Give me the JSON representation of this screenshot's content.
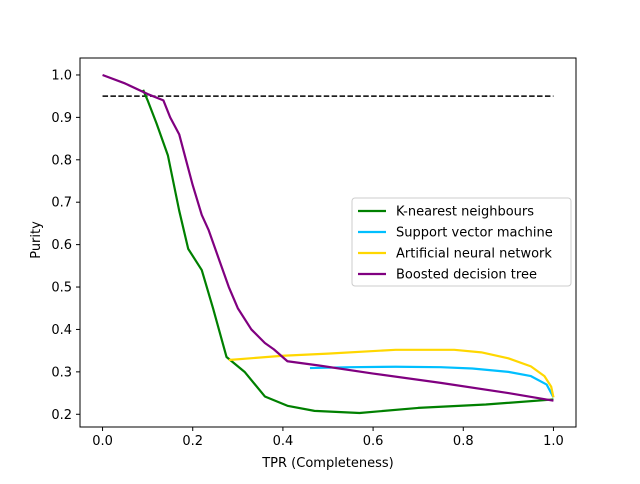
{
  "chart_data": {
    "type": "line",
    "title": "",
    "xlabel": "TPR (Completeness)",
    "ylabel": "Purity",
    "xlim": [
      -0.05,
      1.05
    ],
    "ylim": [
      0.17,
      1.04
    ],
    "xticks": [
      0.0,
      0.2,
      0.4,
      0.6,
      0.8,
      1.0
    ],
    "xtick_labels": [
      "0.0",
      "0.2",
      "0.4",
      "0.6",
      "0.8",
      "1.0"
    ],
    "yticks": [
      0.2,
      0.3,
      0.4,
      0.5,
      0.6,
      0.7,
      0.8,
      0.9,
      1.0
    ],
    "ytick_labels": [
      "0.2",
      "0.3",
      "0.4",
      "0.5",
      "0.6",
      "0.7",
      "0.8",
      "0.9",
      "1.0"
    ],
    "grid": false,
    "legend_position": "center-right",
    "reference_line": {
      "y": 0.95,
      "x_range": [
        0.0,
        1.0
      ],
      "style": "dashed",
      "color": "#000000"
    },
    "series": [
      {
        "name": "K-nearest neighbours",
        "color": "#008000",
        "x": [
          0.09,
          0.1,
          0.12,
          0.145,
          0.17,
          0.19,
          0.22,
          0.245,
          0.275,
          0.315,
          0.36,
          0.41,
          0.47,
          0.57,
          0.7,
          0.85,
          1.0
        ],
        "y": [
          0.965,
          0.94,
          0.885,
          0.81,
          0.68,
          0.59,
          0.54,
          0.45,
          0.335,
          0.3,
          0.242,
          0.22,
          0.208,
          0.203,
          0.215,
          0.223,
          0.235
        ]
      },
      {
        "name": "Support vector machine",
        "color": "#00bfff",
        "x": [
          0.46,
          0.55,
          0.65,
          0.75,
          0.82,
          0.9,
          0.95,
          0.985,
          1.0
        ],
        "y": [
          0.309,
          0.311,
          0.312,
          0.311,
          0.308,
          0.3,
          0.29,
          0.27,
          0.24
        ]
      },
      {
        "name": "Artificial neural network",
        "color": "#ffd700",
        "x": [
          0.28,
          0.4,
          0.5,
          0.65,
          0.78,
          0.84,
          0.9,
          0.95,
          0.98,
          0.995,
          1.0
        ],
        "y": [
          0.328,
          0.338,
          0.343,
          0.352,
          0.352,
          0.346,
          0.332,
          0.313,
          0.29,
          0.265,
          0.24
        ]
      },
      {
        "name": "Boosted decision tree",
        "color": "#800080",
        "x": [
          0.0,
          0.05,
          0.1,
          0.135,
          0.15,
          0.17,
          0.185,
          0.2,
          0.22,
          0.235,
          0.26,
          0.28,
          0.3,
          0.33,
          0.36,
          0.38,
          0.41,
          0.48,
          0.6,
          0.75,
          0.9,
          1.0
        ],
        "y": [
          1.0,
          0.98,
          0.955,
          0.94,
          0.9,
          0.86,
          0.8,
          0.74,
          0.67,
          0.635,
          0.56,
          0.5,
          0.45,
          0.4,
          0.368,
          0.353,
          0.325,
          0.315,
          0.296,
          0.274,
          0.25,
          0.232
        ]
      }
    ]
  }
}
